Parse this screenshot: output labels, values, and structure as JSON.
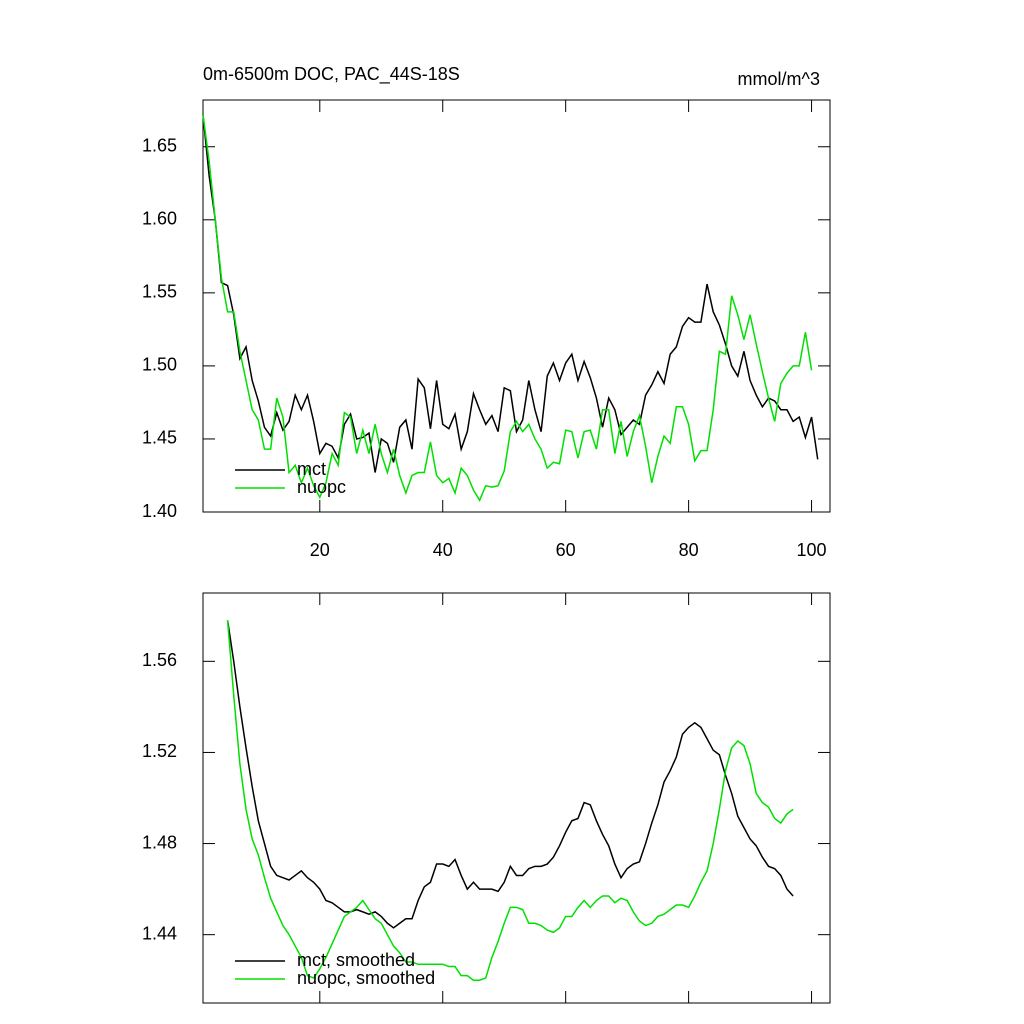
{
  "chart_data": [
    {
      "type": "line",
      "title": "0m-6500m DOC, PAC_44S-18S",
      "units_label": "mmol/m^3",
      "x": [
        1,
        2,
        3,
        4,
        5,
        6,
        7,
        8,
        9,
        10,
        11,
        12,
        13,
        14,
        15,
        16,
        17,
        18,
        19,
        20,
        21,
        22,
        23,
        24,
        25,
        26,
        27,
        28,
        29,
        30,
        31,
        32,
        33,
        34,
        35,
        36,
        37,
        38,
        39,
        40,
        41,
        42,
        43,
        44,
        45,
        46,
        47,
        48,
        49,
        50,
        51,
        52,
        53,
        54,
        55,
        56,
        57,
        58,
        59,
        60,
        61,
        62,
        63,
        64,
        65,
        66,
        67,
        68,
        69,
        70,
        71,
        72,
        73,
        74,
        75,
        76,
        77,
        78,
        79,
        80,
        81,
        82,
        83,
        84,
        85,
        86,
        87,
        88,
        89,
        90,
        91,
        92,
        93,
        94,
        95,
        96,
        97,
        98,
        99,
        100,
        101
      ],
      "series": [
        {
          "name": "mct",
          "color": "#000000",
          "values": [
            1.672,
            1.63,
            1.6,
            1.557,
            1.555,
            1.535,
            1.505,
            1.513,
            1.49,
            1.476,
            1.458,
            1.452,
            1.468,
            1.456,
            1.462,
            1.48,
            1.47,
            1.48,
            1.462,
            1.44,
            1.447,
            1.445,
            1.437,
            1.46,
            1.467,
            1.45,
            1.451,
            1.454,
            1.427,
            1.45,
            1.447,
            1.434,
            1.458,
            1.463,
            1.443,
            1.491,
            1.485,
            1.457,
            1.49,
            1.46,
            1.457,
            1.467,
            1.443,
            1.455,
            1.481,
            1.47,
            1.46,
            1.466,
            1.455,
            1.485,
            1.483,
            1.455,
            1.463,
            1.49,
            1.47,
            1.455,
            1.493,
            1.502,
            1.49,
            1.502,
            1.508,
            1.49,
            1.503,
            1.492,
            1.478,
            1.458,
            1.478,
            1.47,
            1.453,
            1.458,
            1.463,
            1.46,
            1.48,
            1.487,
            1.496,
            1.488,
            1.508,
            1.513,
            1.527,
            1.533,
            1.53,
            1.53,
            1.556,
            1.537,
            1.528,
            1.515,
            1.5,
            1.493,
            1.51,
            1.49,
            1.48,
            1.472,
            1.478,
            1.476,
            1.47,
            1.47,
            1.462,
            1.465,
            1.451,
            1.465,
            1.436
          ]
        },
        {
          "name": "nuopc",
          "color": "#00e000",
          "values": [
            1.672,
            1.64,
            1.6,
            1.56,
            1.537,
            1.537,
            1.51,
            1.49,
            1.47,
            1.463,
            1.443,
            1.443,
            1.478,
            1.465,
            1.427,
            1.432,
            1.42,
            1.43,
            1.418,
            1.41,
            1.42,
            1.44,
            1.432,
            1.468,
            1.465,
            1.44,
            1.456,
            1.44,
            1.46,
            1.44,
            1.427,
            1.443,
            1.425,
            1.413,
            1.425,
            1.427,
            1.427,
            1.448,
            1.425,
            1.42,
            1.423,
            1.413,
            1.43,
            1.425,
            1.415,
            1.408,
            1.418,
            1.417,
            1.418,
            1.428,
            1.455,
            1.462,
            1.455,
            1.46,
            1.45,
            1.443,
            1.43,
            1.434,
            1.433,
            1.456,
            1.455,
            1.437,
            1.455,
            1.456,
            1.443,
            1.47,
            1.47,
            1.44,
            1.462,
            1.438,
            1.455,
            1.466,
            1.445,
            1.42,
            1.438,
            1.452,
            1.447,
            1.472,
            1.472,
            1.46,
            1.435,
            1.442,
            1.442,
            1.47,
            1.51,
            1.508,
            1.548,
            1.535,
            1.518,
            1.535,
            1.515,
            1.496,
            1.478,
            1.462,
            1.488,
            1.495,
            1.5,
            1.5,
            1.523,
            1.497,
            null
          ]
        }
      ],
      "xlim": [
        1,
        103
      ],
      "xticks": [
        20,
        40,
        60,
        80,
        100
      ],
      "show_xtick_labels": true,
      "ylim": [
        1.4,
        1.682
      ],
      "yticks": [
        {
          "value": 1.4,
          "label": "1.40"
        },
        1.45,
        {
          "value": 1.5,
          "label": "1.50"
        },
        1.55,
        {
          "value": 1.6,
          "label": "1.60"
        },
        1.65
      ],
      "legend": "lower left"
    },
    {
      "type": "line",
      "x": [
        5,
        6,
        7,
        8,
        9,
        10,
        11,
        12,
        13,
        14,
        15,
        16,
        17,
        18,
        19,
        20,
        21,
        22,
        23,
        24,
        25,
        26,
        27,
        28,
        29,
        30,
        31,
        32,
        33,
        34,
        35,
        36,
        37,
        38,
        39,
        40,
        41,
        42,
        43,
        44,
        45,
        46,
        47,
        48,
        49,
        50,
        51,
        52,
        53,
        54,
        55,
        56,
        57,
        58,
        59,
        60,
        61,
        62,
        63,
        64,
        65,
        66,
        67,
        68,
        69,
        70,
        71,
        72,
        73,
        74,
        75,
        76,
        77,
        78,
        79,
        80,
        81,
        82,
        83,
        84,
        85,
        86,
        87,
        88,
        89,
        90,
        91,
        92,
        93,
        94,
        95,
        96,
        97
      ],
      "series": [
        {
          "name": "mct, smoothed",
          "color": "#000000",
          "values": [
            1.578,
            1.56,
            1.54,
            1.522,
            1.505,
            1.49,
            1.48,
            1.47,
            1.466,
            1.465,
            1.464,
            1.466,
            1.468,
            1.465,
            1.463,
            1.46,
            1.455,
            1.454,
            1.452,
            1.45,
            1.45,
            1.451,
            1.45,
            1.449,
            1.45,
            1.448,
            1.445,
            1.443,
            1.445,
            1.447,
            1.447,
            1.455,
            1.461,
            1.463,
            1.471,
            1.471,
            1.47,
            1.473,
            1.466,
            1.46,
            1.463,
            1.46,
            1.46,
            1.46,
            1.459,
            1.463,
            1.47,
            1.466,
            1.466,
            1.469,
            1.47,
            1.47,
            1.471,
            1.474,
            1.479,
            1.485,
            1.49,
            1.491,
            1.498,
            1.497,
            1.49,
            1.484,
            1.479,
            1.471,
            1.465,
            1.469,
            1.471,
            1.472,
            1.48,
            1.489,
            1.497,
            1.507,
            1.512,
            1.518,
            1.528,
            1.531,
            1.533,
            1.531,
            1.526,
            1.521,
            1.519,
            1.51,
            1.502,
            1.492,
            1.487,
            1.482,
            1.479,
            1.474,
            1.47,
            1.469,
            1.466,
            1.46,
            1.457
          ]
        },
        {
          "name": "nuopc, smoothed",
          "color": "#00e000",
          "values": [
            1.578,
            1.545,
            1.515,
            1.495,
            1.482,
            1.475,
            1.465,
            1.456,
            1.45,
            1.444,
            1.44,
            1.435,
            1.43,
            1.422,
            1.421,
            1.425,
            1.43,
            1.436,
            1.442,
            1.448,
            1.45,
            1.452,
            1.455,
            1.451,
            1.447,
            1.445,
            1.44,
            1.435,
            1.432,
            1.428,
            1.428,
            1.427,
            1.427,
            1.427,
            1.427,
            1.427,
            1.426,
            1.426,
            1.422,
            1.422,
            1.42,
            1.42,
            1.421,
            1.43,
            1.437,
            1.445,
            1.452,
            1.452,
            1.451,
            1.445,
            1.445,
            1.444,
            1.442,
            1.441,
            1.443,
            1.448,
            1.448,
            1.452,
            1.455,
            1.452,
            1.455,
            1.457,
            1.457,
            1.454,
            1.456,
            1.455,
            1.45,
            1.446,
            1.444,
            1.445,
            1.448,
            1.449,
            1.451,
            1.453,
            1.453,
            1.452,
            1.457,
            1.463,
            1.468,
            1.48,
            1.495,
            1.512,
            1.522,
            1.525,
            1.523,
            1.515,
            1.502,
            1.498,
            1.496,
            1.491,
            1.489,
            1.493,
            1.495
          ]
        }
      ],
      "xlim": [
        1,
        103
      ],
      "xticks": [
        20,
        40,
        60,
        80,
        100
      ],
      "show_xtick_labels": false,
      "ylim": [
        1.41,
        1.59
      ],
      "yticks": [
        1.44,
        1.48,
        1.52,
        1.56
      ],
      "legend": "lower left"
    }
  ]
}
